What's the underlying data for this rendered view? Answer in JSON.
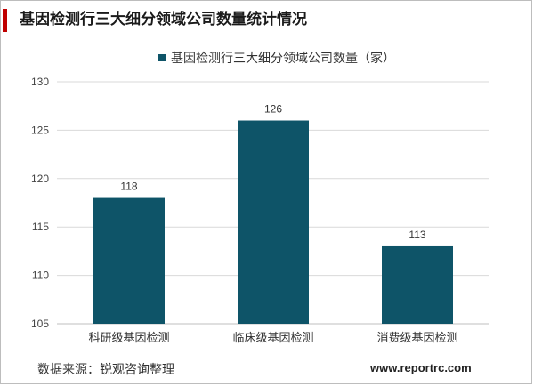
{
  "page": {
    "title": "基因检测行三大细分领域公司数量统计情况",
    "source": "数据来源：锐观咨询整理",
    "site": "www.reportrc.com",
    "accent_color": "#c00000"
  },
  "chart_data": {
    "type": "bar",
    "categories": [
      "科研级基因检测",
      "临床级基因检测",
      "消费级基因检测"
    ],
    "series": [
      {
        "name": "基因检测行三大细分领域公司数量（家）",
        "values": [
          118,
          126,
          113
        ],
        "color": "#0e5468"
      }
    ],
    "yticks": [
      105,
      110,
      115,
      120,
      125,
      130
    ],
    "ylim": [
      105,
      130
    ],
    "grid": true,
    "legend": "top-center"
  }
}
